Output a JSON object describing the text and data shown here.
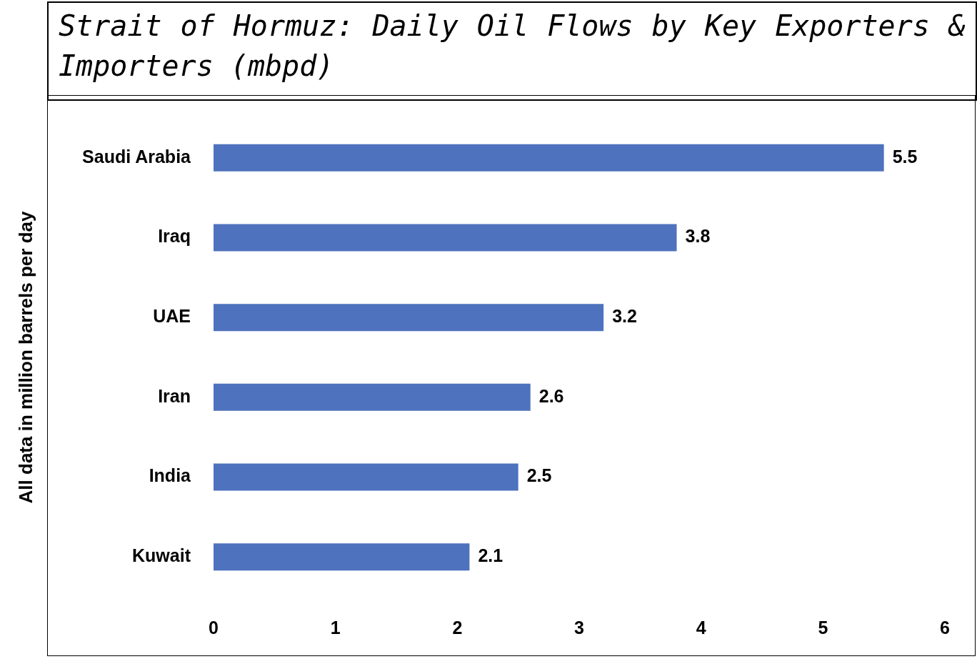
{
  "chart_data": {
    "type": "bar",
    "orientation": "horizontal",
    "title": "Strait of Hormuz: Daily Oil Flows by Key Exporters & Importers (mbpd)",
    "ylabel": "All data in million barrels per day",
    "categories": [
      "Saudi Arabia",
      "Iraq",
      "UAE",
      "Iran",
      "India",
      "Kuwait"
    ],
    "values": [
      5.5,
      3.8,
      3.2,
      2.6,
      2.5,
      2.1
    ],
    "color": "#4f72be",
    "xlim": [
      0,
      6
    ],
    "xticks": [
      0,
      1,
      2,
      3,
      4,
      5,
      6
    ],
    "data_labels": true,
    "grid": false,
    "legend": false
  }
}
